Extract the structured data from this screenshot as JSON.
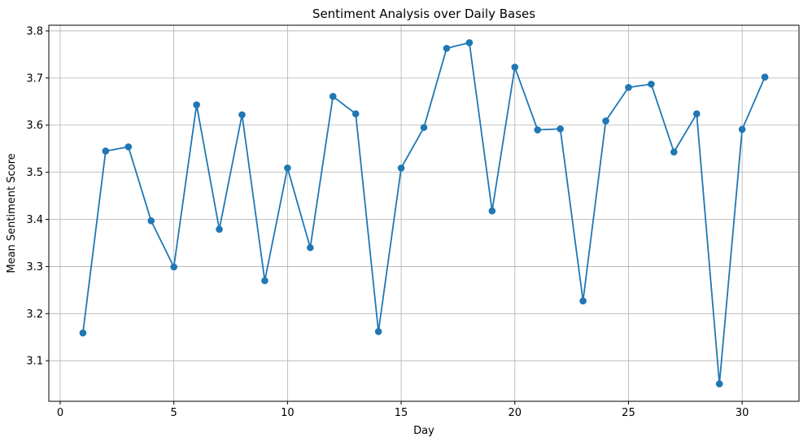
{
  "chart_data": {
    "type": "line",
    "title": "Sentiment Analysis over Daily Bases",
    "xlabel": "Day",
    "ylabel": "Mean Sentiment Score",
    "xlim": [
      -0.5,
      32.5
    ],
    "ylim": [
      3.014,
      3.812
    ],
    "x_ticks": [
      0,
      5,
      10,
      15,
      20,
      25,
      30
    ],
    "y_ticks": [
      3.1,
      3.2,
      3.3,
      3.4,
      3.5,
      3.6,
      3.7,
      3.8
    ],
    "grid": true,
    "marker": "circle",
    "color": "#1f77b4",
    "series": [
      {
        "x": [
          1,
          2,
          3,
          4,
          5,
          6,
          7,
          8,
          9,
          10,
          11,
          12,
          13,
          14,
          15,
          16,
          17,
          18,
          19,
          20,
          21,
          22,
          23,
          24,
          25,
          26,
          27,
          28,
          29,
          30,
          31
        ],
        "values": [
          3.159,
          3.545,
          3.554,
          3.397,
          3.299,
          3.643,
          3.379,
          3.622,
          3.27,
          3.509,
          3.34,
          3.661,
          3.624,
          3.162,
          3.509,
          3.595,
          3.763,
          3.775,
          3.418,
          3.723,
          3.59,
          3.592,
          3.227,
          3.609,
          3.68,
          3.687,
          3.543,
          3.624,
          3.051,
          3.591,
          3.702
        ]
      }
    ]
  }
}
